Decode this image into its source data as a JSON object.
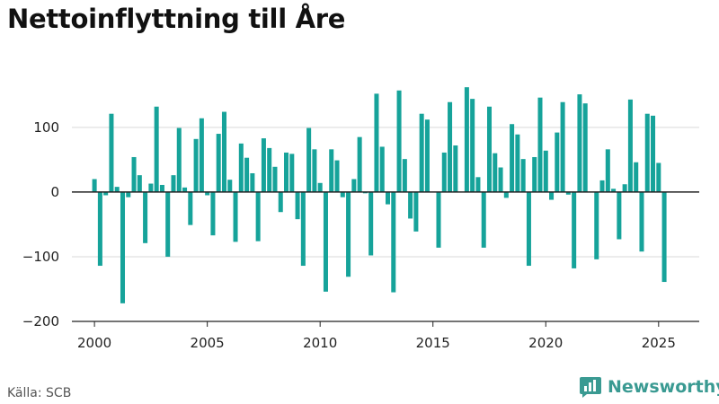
{
  "title": "Nettoinflyttning till Åre",
  "source": "Källa: SCB",
  "brand": "Newsworthy",
  "colors": {
    "bar": "#16a39a",
    "grid": "#d9d9d9",
    "zero": "#222222",
    "brand": "#3a9a92"
  },
  "chart_data": {
    "type": "bar",
    "title": "Nettoinflyttning till Åre",
    "xlabel": "",
    "ylabel": "",
    "xlim": [
      1999.0,
      2026.8
    ],
    "ylim": [
      -200,
      165
    ],
    "yticks": [
      -200,
      -100,
      0,
      100
    ],
    "ytick_labels": [
      "−200",
      "−100",
      "0",
      "100"
    ],
    "xticks": [
      2000,
      2005,
      2010,
      2015,
      2020,
      2025
    ],
    "xtick_labels": [
      "2000",
      "2005",
      "2010",
      "2015",
      "2020",
      "2025"
    ],
    "grid": "horizontal",
    "legend": "none",
    "x": [
      2000.0,
      2000.25,
      2000.5,
      2000.75,
      2001.0,
      2001.25,
      2001.5,
      2001.75,
      2002.0,
      2002.25,
      2002.5,
      2002.75,
      2003.0,
      2003.25,
      2003.5,
      2003.75,
      2004.0,
      2004.25,
      2004.5,
      2004.75,
      2005.0,
      2005.25,
      2005.5,
      2005.75,
      2006.0,
      2006.25,
      2006.5,
      2006.75,
      2007.0,
      2007.25,
      2007.5,
      2007.75,
      2008.0,
      2008.25,
      2008.5,
      2008.75,
      2009.0,
      2009.25,
      2009.5,
      2009.75,
      2010.0,
      2010.25,
      2010.5,
      2010.75,
      2011.0,
      2011.25,
      2011.5,
      2011.75,
      2012.0,
      2012.25,
      2012.5,
      2012.75,
      2013.0,
      2013.25,
      2013.5,
      2013.75,
      2014.0,
      2014.25,
      2014.5,
      2014.75,
      2015.0,
      2015.25,
      2015.5,
      2015.75,
      2016.0,
      2016.25,
      2016.5,
      2016.75,
      2017.0,
      2017.25,
      2017.5,
      2017.75,
      2018.0,
      2018.25,
      2018.5,
      2018.75,
      2019.0,
      2019.25,
      2019.5,
      2019.75,
      2020.0,
      2020.25,
      2020.5,
      2020.75,
      2021.0,
      2021.25,
      2021.5,
      2021.75,
      2022.0,
      2022.25,
      2022.5,
      2022.75,
      2023.0,
      2023.25,
      2023.5,
      2023.75,
      2024.0,
      2024.25,
      2024.5,
      2024.75,
      2025.0,
      2025.25
    ],
    "values": [
      20,
      -114,
      -5,
      121,
      8,
      -172,
      -8,
      54,
      26,
      -79,
      13,
      132,
      11,
      -100,
      26,
      99,
      7,
      -51,
      82,
      114,
      -5,
      -67,
      90,
      124,
      19,
      -77,
      75,
      53,
      29,
      -76,
      83,
      68,
      39,
      -31,
      61,
      59,
      -42,
      -114,
      99,
      66,
      14,
      -154,
      66,
      49,
      -8,
      -131,
      20,
      85,
      -2,
      -98,
      152,
      70,
      -19,
      -155,
      157,
      51,
      -41,
      -61,
      121,
      112,
      0,
      -86,
      61,
      139,
      72,
      0,
      162,
      144,
      23,
      -86,
      132,
      60,
      38,
      -9,
      105,
      89,
      51,
      -114,
      54,
      146,
      64,
      -12,
      92,
      139,
      -4,
      -118,
      151,
      137,
      0,
      -104,
      18,
      66,
      5,
      -73,
      12,
      143,
      46,
      -92,
      121,
      118,
      45,
      -139
    ]
  }
}
